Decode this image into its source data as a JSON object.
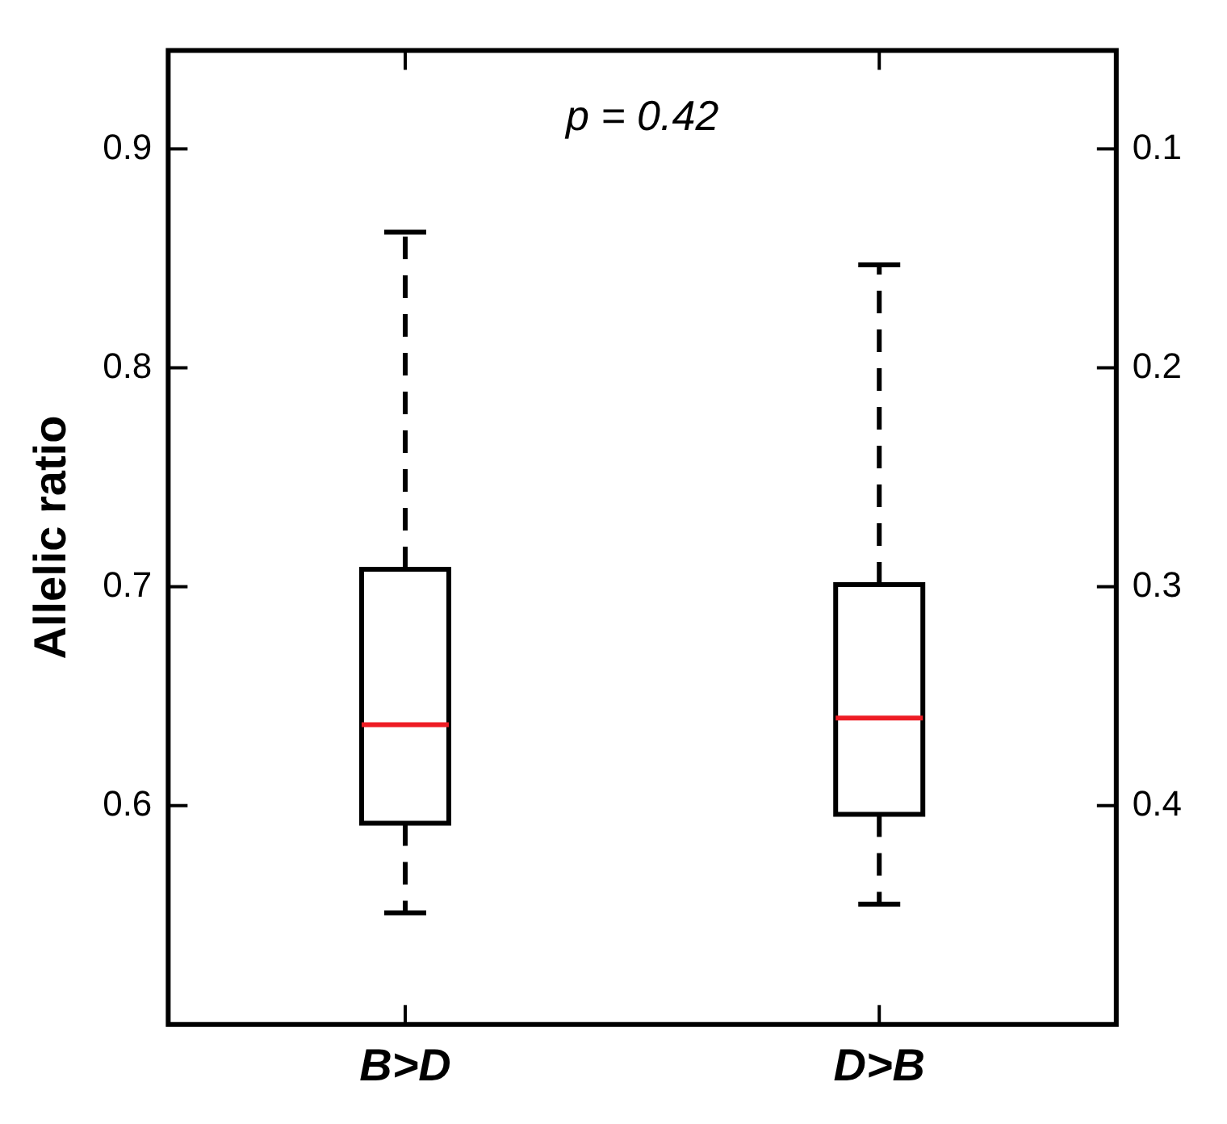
{
  "chart_data": {
    "type": "box",
    "categories": [
      "B>D",
      "D>B"
    ],
    "ylabel": "Allelic ratio",
    "annotations": [
      "p = 0.42"
    ],
    "boxes": [
      {
        "low": 0.551,
        "q1": 0.592,
        "median": 0.637,
        "q3": 0.708,
        "high": 0.862
      },
      {
        "low": 0.555,
        "q1": 0.596,
        "median": 0.64,
        "q3": 0.701,
        "high": 0.847
      }
    ],
    "ylim": [
      0.5,
      0.945
    ],
    "yticks": [
      0.6,
      0.7,
      0.8,
      0.9
    ],
    "y2lim": [
      0.5,
      0.055
    ],
    "y2ticks": [
      0.1,
      0.2,
      0.3,
      0.4
    ],
    "grid": false,
    "legend": false
  }
}
